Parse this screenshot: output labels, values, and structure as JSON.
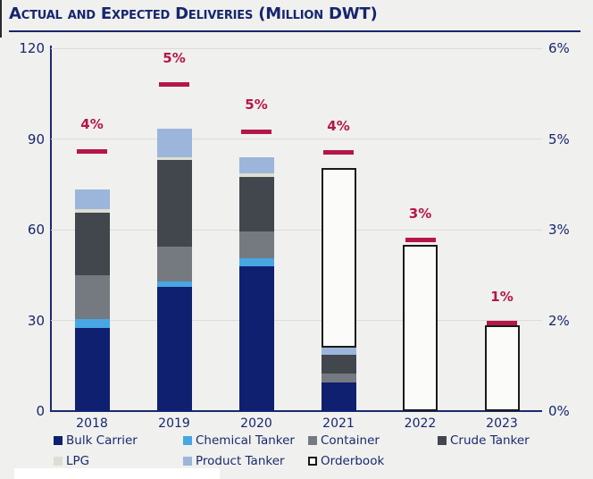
{
  "title": "Actual and Expected Deliveries (Million DWT)",
  "colors": {
    "background": "#f0f0ee",
    "navy_text": "#17266d",
    "axis_line": "#1b2a6c",
    "gridline": "#dbdbd9",
    "marker": "#b5164a",
    "orderbook_border": "#1a1a1a",
    "orderbook_fill": "#fbfbf9"
  },
  "chart_data": {
    "type": "bar",
    "subtype": "stacked-bars-with-percent-markers",
    "categories": [
      "2018",
      "2019",
      "2020",
      "2021",
      "2022",
      "2023"
    ],
    "series": [
      {
        "name": "Bulk Carrier",
        "color": "#0e206f",
        "outlined": false,
        "values": [
          27.5,
          41,
          48,
          9.5,
          0,
          0
        ]
      },
      {
        "name": "Chemical Tanker",
        "color": "#47a6e3",
        "outlined": false,
        "values": [
          3,
          2,
          2.5,
          0,
          0,
          0
        ]
      },
      {
        "name": "Container",
        "color": "#757a80",
        "outlined": false,
        "values": [
          14.5,
          11.5,
          9,
          3,
          0,
          0
        ]
      },
      {
        "name": "Crude Tanker",
        "color": "#42464d",
        "outlined": false,
        "values": [
          20.5,
          28.5,
          18,
          6,
          0,
          0
        ]
      },
      {
        "name": "LPG",
        "color": "#dcded2",
        "outlined": false,
        "values": [
          1.2,
          1,
          1.2,
          0,
          0,
          0
        ]
      },
      {
        "name": "Product Tanker",
        "color": "#9bb6da",
        "outlined": false,
        "values": [
          6.5,
          9.5,
          5.3,
          2.5,
          0,
          0
        ]
      },
      {
        "name": "Orderbook",
        "color": "#fbfbf9",
        "outlined": true,
        "values": [
          0,
          0,
          0,
          59.5,
          55,
          28.5
        ]
      }
    ],
    "markers": {
      "labels": [
        "4%",
        "5%",
        "5%",
        "4%",
        "3%",
        "1%"
      ],
      "values_left_axis": [
        86,
        108,
        92.5,
        85.5,
        56.5,
        29
      ]
    },
    "left_axis": {
      "ticks": [
        0,
        30,
        60,
        90,
        120
      ],
      "min": 0,
      "max": 120
    },
    "right_axis": {
      "ticks": [
        "0%",
        "2%",
        "3%",
        "5%",
        "6%"
      ],
      "min_label": "0%",
      "max_label": "6%"
    },
    "grid": true,
    "legend_position": "bottom"
  },
  "legend": {
    "row1_series_indexes": [
      0,
      1,
      2,
      3
    ],
    "row2_series_indexes": [
      4,
      5,
      6
    ]
  }
}
